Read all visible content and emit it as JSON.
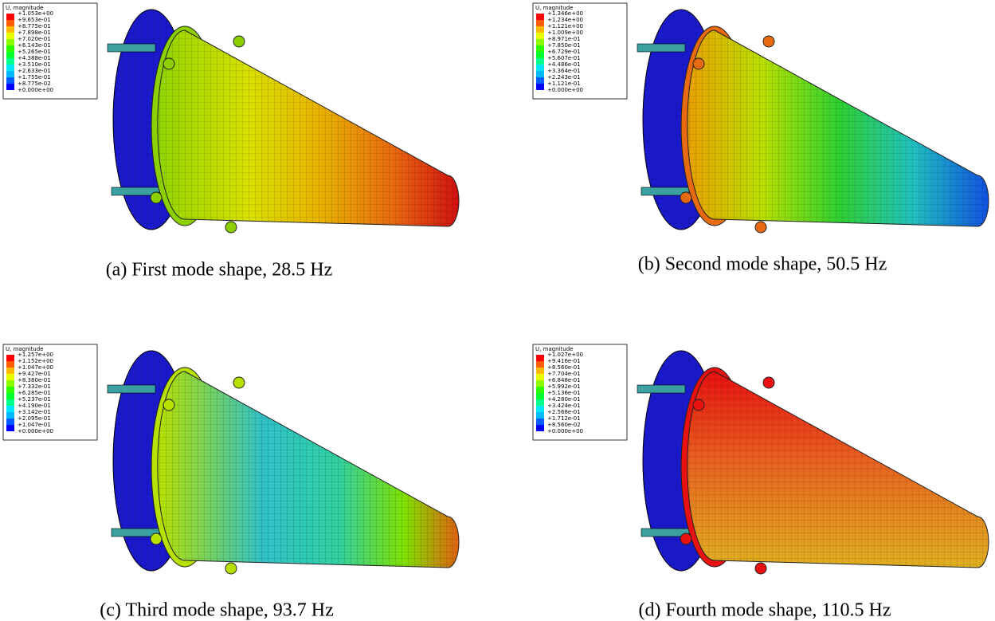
{
  "panels": [
    {
      "legend": {
        "title": "U, magnitude",
        "values": [
          "+1.053e+00",
          "+9.653e-01",
          "+8.775e-01",
          "+7.898e-01",
          "+7.020e-01",
          "+6.143e-01",
          "+5.265e-01",
          "+4.388e-01",
          "+3.510e-01",
          "+2.633e-01",
          "+1.755e-01",
          "+8.775e-02",
          "+0.000e+00"
        ]
      },
      "caption": "(a)  First mode shape, 28.5 Hz"
    },
    {
      "legend": {
        "title": "U, magnitude",
        "values": [
          "+1.346e+00",
          "+1.234e+00",
          "+1.121e+00",
          "+1.009e+00",
          "+8.971e-01",
          "+7.850e-01",
          "+6.729e-01",
          "+5.607e-01",
          "+4.486e-01",
          "+3.364e-01",
          "+2.243e-01",
          "+1.121e-01",
          "+0.000e+00"
        ]
      },
      "caption": "(b)  Second mode shape, 50.5 Hz"
    },
    {
      "legend": {
        "title": "U, magnitude",
        "values": [
          "+1.257e+00",
          "+1.152e+00",
          "+1.047e+00",
          "+9.427e-01",
          "+8.380e-01",
          "+7.332e-01",
          "+6.285e-01",
          "+5.237e-01",
          "+4.190e-01",
          "+3.142e-01",
          "+2.095e-01",
          "+1.047e-01",
          "+0.000e+00"
        ]
      },
      "caption": "(c)  Third mode shape, 93.7 Hz"
    },
    {
      "legend": {
        "title": "U, magnitude",
        "values": [
          "+1.027e+00",
          "+9.416e-01",
          "+8.560e-01",
          "+7.704e-01",
          "+6.848e-01",
          "+5.992e-01",
          "+5.136e-01",
          "+4.280e-01",
          "+3.424e-01",
          "+2.568e-01",
          "+1.712e-01",
          "+8.560e-02",
          "+0.000e+00"
        ]
      },
      "caption": "(d)  Fourth mode shape, 110.5 Hz"
    }
  ]
}
